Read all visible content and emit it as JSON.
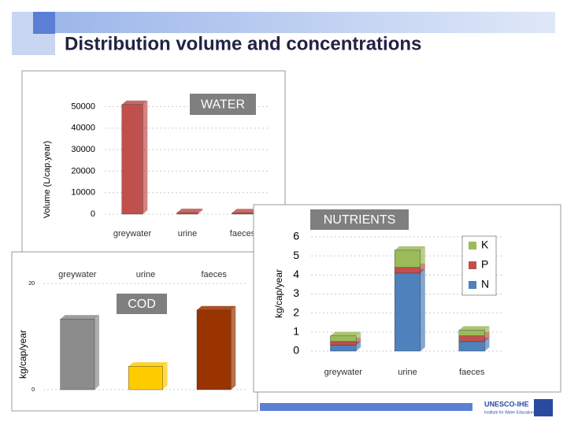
{
  "slide": {
    "title": "Distribution volume and concentrations",
    "logo": "UNESCO-IHE",
    "logo_subtitle": "Institute for Water Education"
  },
  "chart_data": [
    {
      "type": "bar",
      "title": "WATER",
      "ylabel": "Volume (L/cap.year)",
      "categories": [
        "greywater",
        "urine",
        "faeces"
      ],
      "values": [
        51000,
        700,
        600
      ],
      "color": "#c0504d",
      "ylim": [
        0,
        52000
      ],
      "yticks": [
        0,
        10000,
        20000,
        30000,
        40000,
        50000
      ]
    },
    {
      "type": "bar",
      "title": "COD",
      "ylabel": "kg/cap/year",
      "categories": [
        "greywater",
        "urine",
        "faeces"
      ],
      "values": [
        13.3,
        4.4,
        15
      ],
      "colors": [
        "#8c8c8c",
        "#ffcc00",
        "#993300"
      ],
      "ylim": [
        0,
        20
      ],
      "yticks": [
        0,
        20
      ]
    },
    {
      "type": "stacked_bar",
      "title": "NUTRIENTS",
      "ylabel": "kg/cap/year",
      "categories": [
        "greywater",
        "urine",
        "faeces"
      ],
      "series": [
        {
          "name": "N",
          "color": "#4f81bd",
          "values": [
            0.3,
            4.1,
            0.5
          ]
        },
        {
          "name": "P",
          "color": "#c0504d",
          "values": [
            0.2,
            0.3,
            0.3
          ]
        },
        {
          "name": "K",
          "color": "#9bbb59",
          "values": [
            0.3,
            0.9,
            0.3
          ]
        }
      ],
      "ylim": [
        0,
        6
      ],
      "yticks": [
        0,
        1,
        2,
        3,
        4,
        5,
        6
      ]
    }
  ]
}
